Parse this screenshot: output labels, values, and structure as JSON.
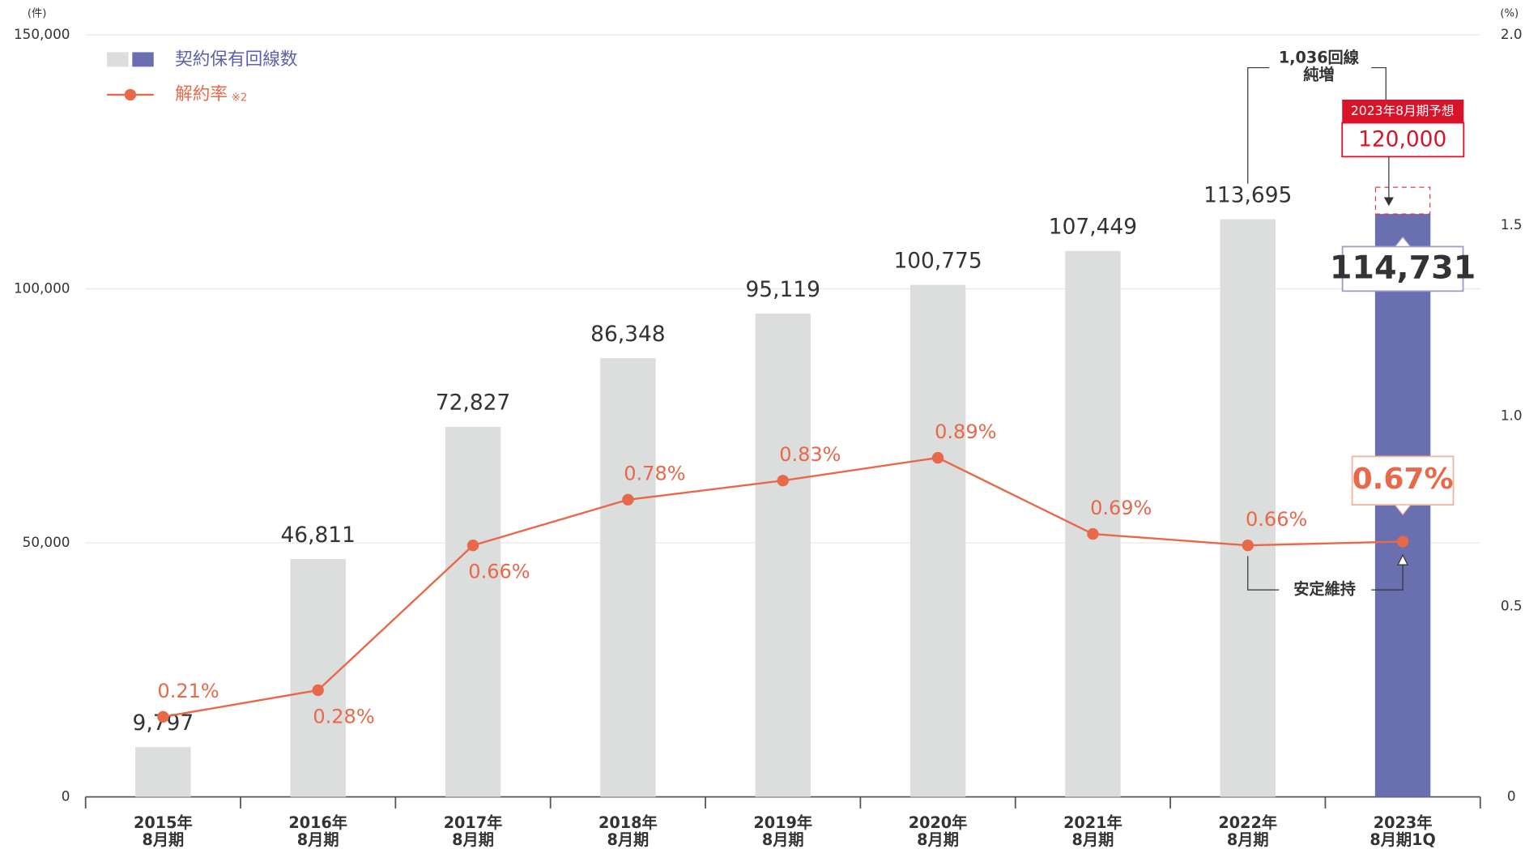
{
  "chart_data": {
    "type": "bar-line",
    "y_unit_label": "(件)",
    "y2_unit_label": "(%)",
    "categories": [
      "2015年\n8月期",
      "2016年\n8月期",
      "2017年\n8月期",
      "2018年\n8月期",
      "2019年\n8月期",
      "2020年\n8月期",
      "2021年\n8月期",
      "2022年\n8月期",
      "2023年\n8月期1Q"
    ],
    "series": [
      {
        "name": "契約保有回線数",
        "type": "bar",
        "color": "#dcdddd",
        "highlight_color": "#6a6fb0",
        "values": [
          9797,
          46811,
          72827,
          86348,
          95119,
          100775,
          107449,
          113695,
          114731
        ],
        "value_labels": [
          "9,797",
          "46,811",
          "72,827",
          "86,348",
          "95,119",
          "100,775",
          "107,449",
          "113,695",
          "114,731"
        ]
      },
      {
        "name": "解約率",
        "note": "※2",
        "type": "line",
        "axis": "y2",
        "color": "#e8694a",
        "values": [
          0.21,
          0.28,
          0.66,
          0.78,
          0.83,
          0.89,
          0.69,
          0.66,
          0.67
        ],
        "value_labels": [
          "0.21%",
          "0.28%",
          "0.66%",
          "0.78%",
          "0.83%",
          "0.89%",
          "0.69%",
          "0.66%",
          "0.67%"
        ]
      }
    ],
    "ylim": [
      0,
      150000
    ],
    "yticks": [
      0,
      {
        "value": 50000,
        "label": "50,000"
      },
      {
        "value": 100000,
        "label": "100,000"
      },
      {
        "value": 150000,
        "label": "150,000"
      }
    ],
    "y2lim": [
      0,
      2
    ],
    "y2ticks": [
      0,
      0.5,
      {
        "value": 1,
        "label": "1.0"
      },
      1.5,
      {
        "value": 2,
        "label": "2.0"
      }
    ],
    "grid": true,
    "forecast": {
      "label": "2023年8月期予想",
      "value": 120000,
      "value_label": "120,000"
    },
    "annotations": {
      "net_increase": "1,036回線\n純増",
      "stable": "安定維持"
    }
  }
}
